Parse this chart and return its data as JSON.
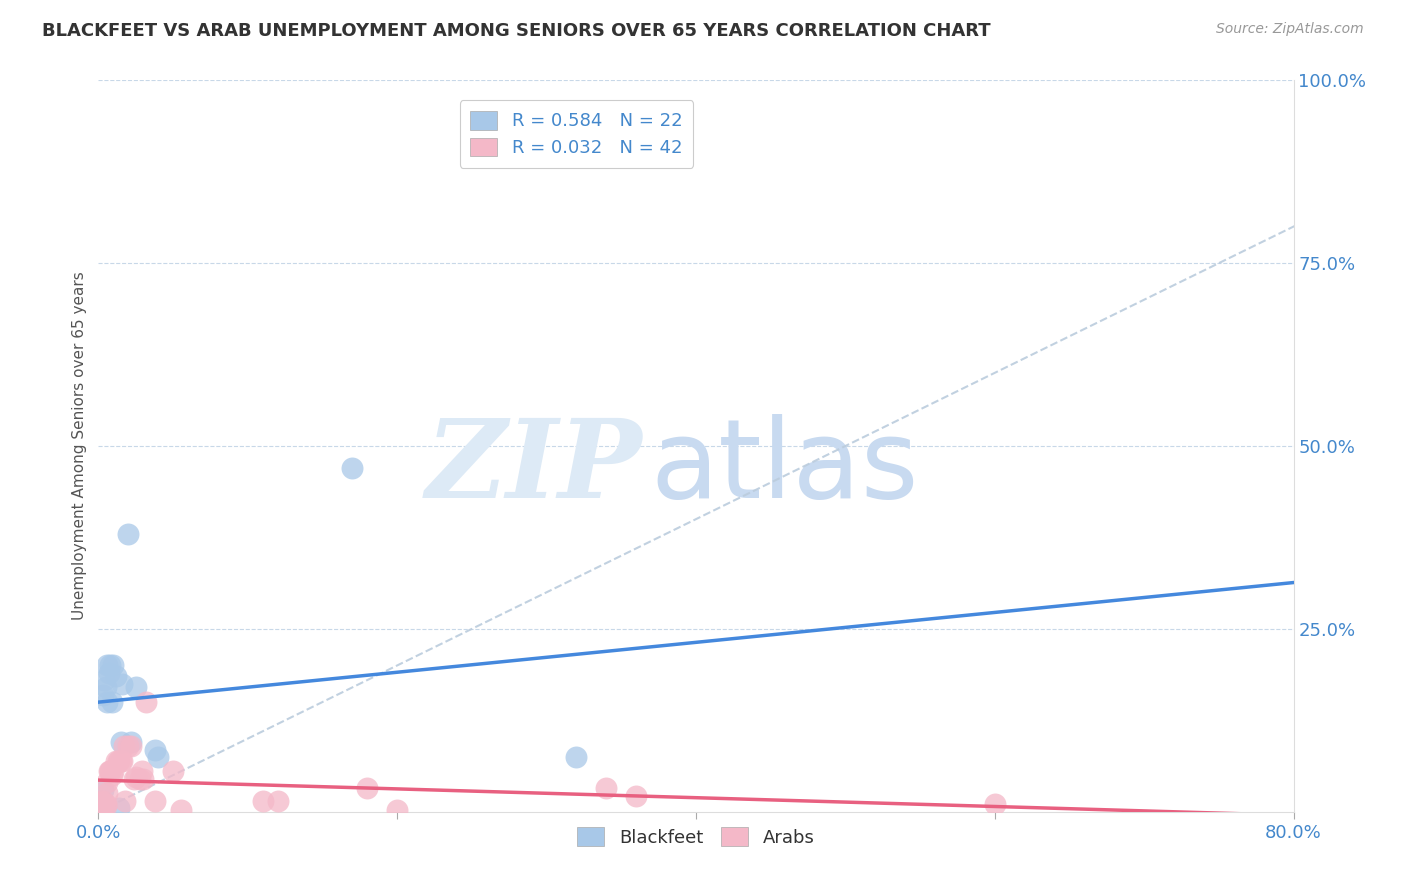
{
  "title": "BLACKFEET VS ARAB UNEMPLOYMENT AMONG SENIORS OVER 65 YEARS CORRELATION CHART",
  "source": "Source: ZipAtlas.com",
  "ylabel": "Unemployment Among Seniors over 65 years",
  "xlim": [
    0.0,
    0.8
  ],
  "ylim": [
    0.0,
    1.0
  ],
  "xticks": [
    0.0,
    0.2,
    0.4,
    0.6,
    0.8
  ],
  "xtick_labels": [
    "0.0%",
    "",
    "",
    "",
    "80.0%"
  ],
  "yticks": [
    0.25,
    0.5,
    0.75,
    1.0
  ],
  "ytick_labels": [
    "25.0%",
    "50.0%",
    "75.0%",
    "100.0%"
  ],
  "blackfeet_R": 0.584,
  "blackfeet_N": 22,
  "arab_R": 0.032,
  "arab_N": 42,
  "blackfeet_color": "#a8c8e8",
  "arab_color": "#f4b8c8",
  "blackfeet_line_color": "#4488dd",
  "arab_line_color": "#e86080",
  "diagonal_color": "#bbccdd",
  "blackfeet_x": [
    0.002,
    0.003,
    0.003,
    0.004,
    0.005,
    0.006,
    0.006,
    0.007,
    0.008,
    0.009,
    0.01,
    0.012,
    0.014,
    0.015,
    0.016,
    0.02,
    0.022,
    0.025,
    0.038,
    0.04,
    0.17,
    0.32
  ],
  "blackfeet_y": [
    0.01,
    0.03,
    0.16,
    0.18,
    0.17,
    0.15,
    0.2,
    0.19,
    0.2,
    0.15,
    0.2,
    0.185,
    0.005,
    0.095,
    0.175,
    0.38,
    0.095,
    0.17,
    0.085,
    0.075,
    0.47,
    0.075
  ],
  "arab_x": [
    0.001,
    0.002,
    0.002,
    0.003,
    0.003,
    0.003,
    0.004,
    0.004,
    0.005,
    0.005,
    0.006,
    0.006,
    0.007,
    0.008,
    0.008,
    0.009,
    0.01,
    0.012,
    0.013,
    0.014,
    0.015,
    0.016,
    0.017,
    0.018,
    0.02,
    0.022,
    0.024,
    0.025,
    0.028,
    0.029,
    0.03,
    0.032,
    0.038,
    0.05,
    0.055,
    0.11,
    0.12,
    0.18,
    0.2,
    0.34,
    0.36,
    0.6
  ],
  "arab_y": [
    0.015,
    0.008,
    0.012,
    0.008,
    0.012,
    0.015,
    0.008,
    0.012,
    0.008,
    0.01,
    0.025,
    0.04,
    0.055,
    0.055,
    0.055,
    0.05,
    0.055,
    0.07,
    0.07,
    0.07,
    0.07,
    0.07,
    0.09,
    0.015,
    0.09,
    0.09,
    0.045,
    0.048,
    0.045,
    0.055,
    0.045,
    0.15,
    0.015,
    0.055,
    0.003,
    0.015,
    0.015,
    0.032,
    0.003,
    0.032,
    0.022,
    0.01
  ]
}
